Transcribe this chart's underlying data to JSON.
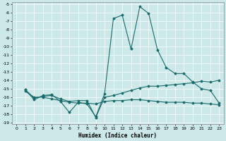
{
  "xlabel": "Humidex (Indice chaleur)",
  "background_color": "#cce8e8",
  "grid_color": "#aacccc",
  "line_color": "#1a6b6b",
  "xlim": [
    0,
    23
  ],
  "ylim": [
    -19,
    -5
  ],
  "yticks": [
    -5,
    -6,
    -7,
    -8,
    -9,
    -10,
    -11,
    -12,
    -13,
    -14,
    -15,
    -16,
    -17,
    -18,
    -19
  ],
  "xticks": [
    0,
    1,
    2,
    3,
    4,
    5,
    6,
    7,
    8,
    9,
    10,
    11,
    12,
    13,
    14,
    15,
    16,
    17,
    18,
    19,
    20,
    21,
    22,
    23
  ],
  "series": [
    [
      null,
      -15.1,
      -16.3,
      -15.8,
      -15.7,
      -16.5,
      -17.8,
      -16.6,
      -16.8,
      -18.3,
      -15.6,
      -6.7,
      -6.3,
      -10.3,
      -5.3,
      -6.1,
      -10.4,
      -12.5,
      -13.2,
      -13.2,
      -14.2,
      -15.0,
      -15.2,
      -16.7
    ],
    [
      null,
      -15.1,
      -16.1,
      -15.9,
      -15.8,
      -16.2,
      -16.5,
      -16.4,
      -16.4,
      -18.4,
      -16.0,
      -15.8,
      -15.5,
      -15.2,
      -14.9,
      -14.7,
      -14.7,
      -14.6,
      -14.5,
      -14.4,
      -14.3,
      -14.1,
      -14.2,
      -14.0
    ],
    [
      null,
      -15.3,
      -16.0,
      -16.0,
      -16.2,
      -16.4,
      -16.6,
      -16.7,
      -16.7,
      -16.8,
      -16.5,
      -16.4,
      -16.4,
      -16.3,
      -16.3,
      -16.4,
      -16.5,
      -16.6,
      -16.6,
      -16.6,
      -16.7,
      -16.7,
      -16.8,
      -16.9
    ]
  ]
}
